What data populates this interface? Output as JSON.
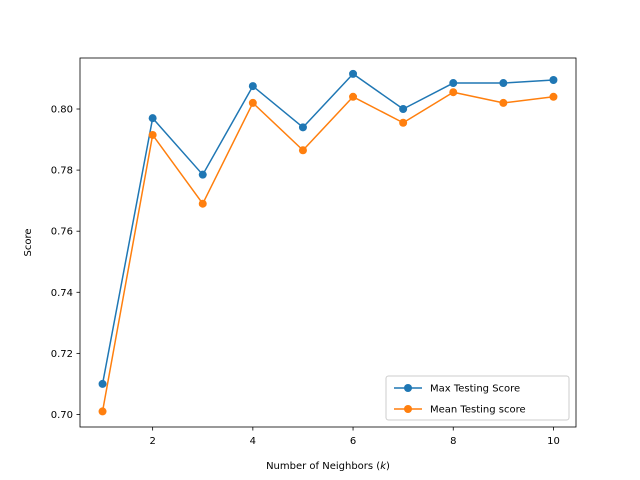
{
  "chart_data": {
    "type": "line",
    "title": "",
    "xlabel": "Number of Neighbors",
    "xlabel_symbol": "k",
    "ylabel": "Score",
    "xlim": [
      0.55,
      10.45
    ],
    "ylim": [
      0.6959,
      0.8167
    ],
    "xticks": [
      2,
      4,
      6,
      8,
      10
    ],
    "yticks": [
      0.7,
      0.72,
      0.74,
      0.76,
      0.78,
      0.8
    ],
    "ytick_labels": [
      "0.70",
      "0.72",
      "0.74",
      "0.76",
      "0.78",
      "0.80"
    ],
    "grid": false,
    "legend_position": "lower-right",
    "x": [
      1,
      2,
      3,
      4,
      5,
      6,
      7,
      8,
      9,
      10
    ],
    "series": [
      {
        "name": "Max Testing Score",
        "color": "#1f77b4",
        "marker": "circle",
        "values": [
          0.71,
          0.797,
          0.7785,
          0.8075,
          0.794,
          0.8115,
          0.8,
          0.8085,
          0.8085,
          0.8095
        ]
      },
      {
        "name": "Mean Testing score",
        "color": "#ff7f0e",
        "marker": "circle",
        "values": [
          0.701,
          0.7915,
          0.769,
          0.802,
          0.7865,
          0.804,
          0.7955,
          0.8055,
          0.802,
          0.804
        ]
      }
    ]
  }
}
